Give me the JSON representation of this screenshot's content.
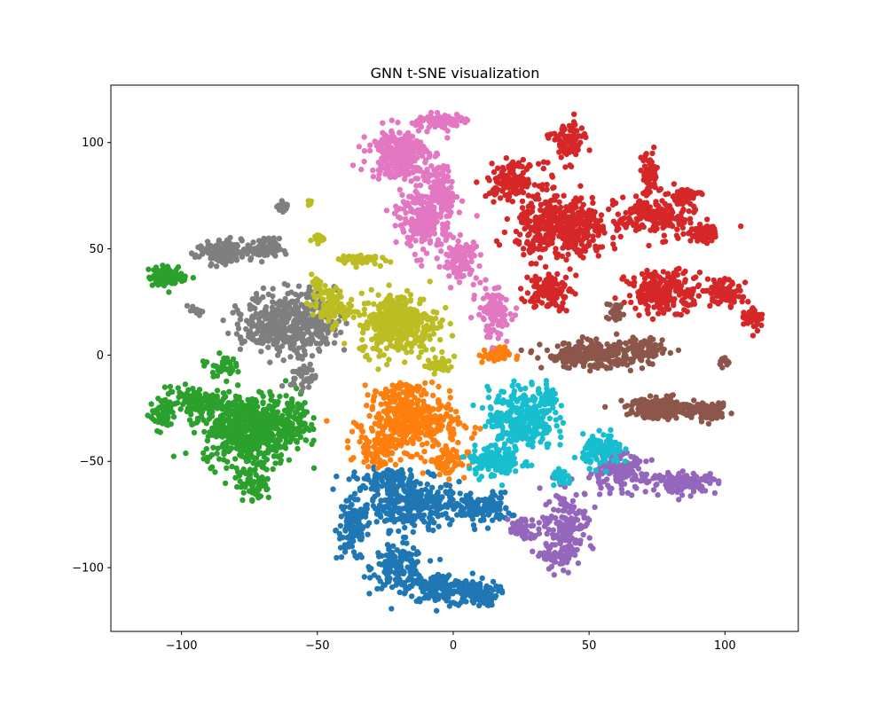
{
  "chart_data": {
    "type": "scatter",
    "title": "GNN t-SNE visualization",
    "xlabel": "",
    "ylabel": "",
    "xlim": [
      -126,
      127
    ],
    "ylim": [
      -130,
      127
    ],
    "xticks": [
      -100,
      -50,
      0,
      50,
      100
    ],
    "yticks": [
      -100,
      -50,
      0,
      50,
      100
    ],
    "grid": false,
    "legend": "none",
    "marker_radius_note": "dense point clouds",
    "series": [
      {
        "color": "#1f77b4",
        "blobs": [
          [
            -15,
            -70,
            14,
            10,
            300
          ],
          [
            -37,
            -82,
            5,
            12,
            110
          ],
          [
            -20,
            -100,
            8,
            8,
            150
          ],
          [
            -5,
            -110,
            10,
            6,
            140
          ],
          [
            8,
            -112,
            7,
            5,
            110
          ],
          [
            10,
            -72,
            9,
            6,
            120
          ],
          [
            -25,
            -58,
            10,
            4,
            80
          ]
        ]
      },
      {
        "color": "#ff7f0e",
        "blobs": [
          [
            -15,
            -32,
            14,
            11,
            360
          ],
          [
            -28,
            -45,
            6,
            6,
            70
          ],
          [
            -2,
            -50,
            6,
            6,
            60
          ],
          [
            15,
            0,
            5,
            3,
            45
          ],
          [
            -20,
            -18,
            8,
            4,
            50
          ]
        ]
      },
      {
        "color": "#2ca02c",
        "blobs": [
          [
            -75,
            -35,
            14,
            14,
            520
          ],
          [
            -95,
            -22,
            10,
            6,
            110
          ],
          [
            -107,
            -28,
            4,
            6,
            60
          ],
          [
            -60,
            -30,
            6,
            10,
            90
          ],
          [
            -73,
            -60,
            5,
            7,
            70
          ],
          [
            -105,
            37,
            6,
            4,
            90
          ],
          [
            -85,
            -5,
            4,
            4,
            40
          ]
        ]
      },
      {
        "color": "#d62728",
        "blobs": [
          [
            40,
            60,
            14,
            12,
            420
          ],
          [
            22,
            82,
            8,
            7,
            140
          ],
          [
            42,
            100,
            5,
            8,
            90
          ],
          [
            72,
            85,
            3,
            9,
            60
          ],
          [
            75,
            65,
            12,
            8,
            200
          ],
          [
            92,
            57,
            4,
            3,
            70
          ],
          [
            78,
            30,
            12,
            8,
            210
          ],
          [
            100,
            30,
            5,
            5,
            80
          ],
          [
            110,
            18,
            3,
            5,
            50
          ],
          [
            35,
            30,
            7,
            7,
            110
          ],
          [
            85,
            75,
            5,
            3,
            50
          ]
        ]
      },
      {
        "color": "#9467bd",
        "blobs": [
          [
            60,
            -55,
            9,
            7,
            150
          ],
          [
            85,
            -60,
            10,
            4,
            150
          ],
          [
            42,
            -78,
            8,
            12,
            150
          ],
          [
            25,
            -82,
            4,
            5,
            40
          ],
          [
            40,
            -95,
            6,
            5,
            60
          ]
        ]
      },
      {
        "color": "#8c564b",
        "blobs": [
          [
            50,
            0,
            14,
            5,
            240
          ],
          [
            70,
            2,
            6,
            6,
            90
          ],
          [
            78,
            -25,
            12,
            4,
            200
          ],
          [
            95,
            -27,
            5,
            3,
            70
          ],
          [
            60,
            20,
            3,
            4,
            30
          ],
          [
            100,
            -3,
            2,
            2,
            15
          ]
        ]
      },
      {
        "color": "#e377c2",
        "blobs": [
          [
            -20,
            95,
            9,
            10,
            260
          ],
          [
            -5,
            110,
            8,
            3,
            90
          ],
          [
            -10,
            65,
            8,
            14,
            260
          ],
          [
            3,
            45,
            5,
            8,
            100
          ],
          [
            15,
            20,
            5,
            10,
            110
          ],
          [
            -5,
            78,
            4,
            10,
            60
          ]
        ]
      },
      {
        "color": "#7f7f7f",
        "blobs": [
          [
            -60,
            15,
            14,
            12,
            480
          ],
          [
            -85,
            48,
            8,
            5,
            140
          ],
          [
            -70,
            50,
            5,
            4,
            80
          ],
          [
            -62,
            70,
            2,
            2,
            20
          ],
          [
            -95,
            21,
            2,
            2,
            12
          ],
          [
            -55,
            -10,
            4,
            5,
            40
          ]
        ]
      },
      {
        "color": "#bcbd22",
        "blobs": [
          [
            -20,
            15,
            12,
            12,
            380
          ],
          [
            -45,
            23,
            6,
            7,
            90
          ],
          [
            -35,
            45,
            6,
            2,
            60
          ],
          [
            -50,
            55,
            2,
            2,
            20
          ],
          [
            -50,
            34,
            2,
            2,
            15
          ],
          [
            -53,
            72,
            1,
            1,
            8
          ],
          [
            -5,
            -5,
            4,
            3,
            40
          ]
        ]
      },
      {
        "color": "#17becf",
        "blobs": [
          [
            25,
            -30,
            10,
            12,
            300
          ],
          [
            15,
            -50,
            8,
            6,
            120
          ],
          [
            55,
            -45,
            6,
            6,
            120
          ],
          [
            40,
            -58,
            3,
            3,
            30
          ],
          [
            35,
            -20,
            3,
            4,
            40
          ]
        ]
      }
    ]
  }
}
